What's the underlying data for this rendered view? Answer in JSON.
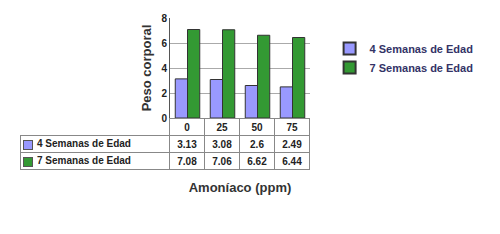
{
  "chart_data": {
    "type": "bar",
    "x_label": "Amoníaco (ppm)",
    "y_label": "Peso corporal",
    "categories": [
      "0",
      "25",
      "50",
      "75"
    ],
    "series": [
      {
        "name": "4 Semanas de Edad",
        "color": "#9999ff",
        "values": [
          3.13,
          3.08,
          2.6,
          2.49
        ]
      },
      {
        "name": "7 Semanas de Edad",
        "color": "#339933",
        "values": [
          7.08,
          7.06,
          6.62,
          6.44
        ]
      }
    ],
    "ylim": [
      0,
      8
    ],
    "yticks": [
      0,
      2,
      4,
      6,
      8
    ],
    "grid": true,
    "legend": "right"
  }
}
